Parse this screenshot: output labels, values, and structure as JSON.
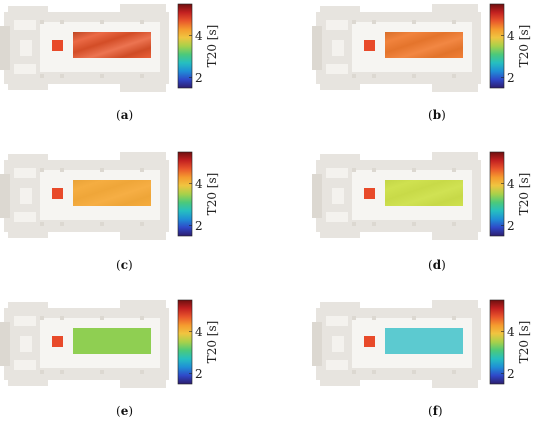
{
  "colorbar": {
    "label": "T20 [s]",
    "ticks": [
      2,
      4
    ],
    "range": [
      1.5,
      5.5
    ],
    "colors": [
      "#2d1e6e",
      "#2f48c8",
      "#1f8fd6",
      "#26bfc0",
      "#4cc97a",
      "#a8d14a",
      "#f0c540",
      "#f59a2e",
      "#e8552b",
      "#c22020",
      "#6e0f0f"
    ]
  },
  "chart_data": [
    {
      "type": "heatmap",
      "panel": "(a)",
      "caption_letter": "a",
      "T20_mean": 5.0,
      "color": "#e8552b",
      "texture": "strong"
    },
    {
      "type": "heatmap",
      "panel": "(b)",
      "caption_letter": "b",
      "T20_mean": 4.7,
      "color": "#f07a2e",
      "texture": "medium"
    },
    {
      "type": "heatmap",
      "panel": "(c)",
      "caption_letter": "c",
      "T20_mean": 4.35,
      "color": "#f5aa3a",
      "texture": "light"
    },
    {
      "type": "heatmap",
      "panel": "(d)",
      "caption_letter": "d",
      "T20_mean": 3.85,
      "color": "#cde04a",
      "texture": "light"
    },
    {
      "type": "heatmap",
      "panel": "(e)",
      "caption_letter": "e",
      "T20_mean": 3.3,
      "color": "#8fcf52",
      "texture": "none"
    },
    {
      "type": "heatmap",
      "panel": "(f)",
      "caption_letter": "f",
      "T20_mean": 2.65,
      "color": "#5ccad0",
      "texture": "none"
    }
  ],
  "source_marker_color": "#e84a2a"
}
